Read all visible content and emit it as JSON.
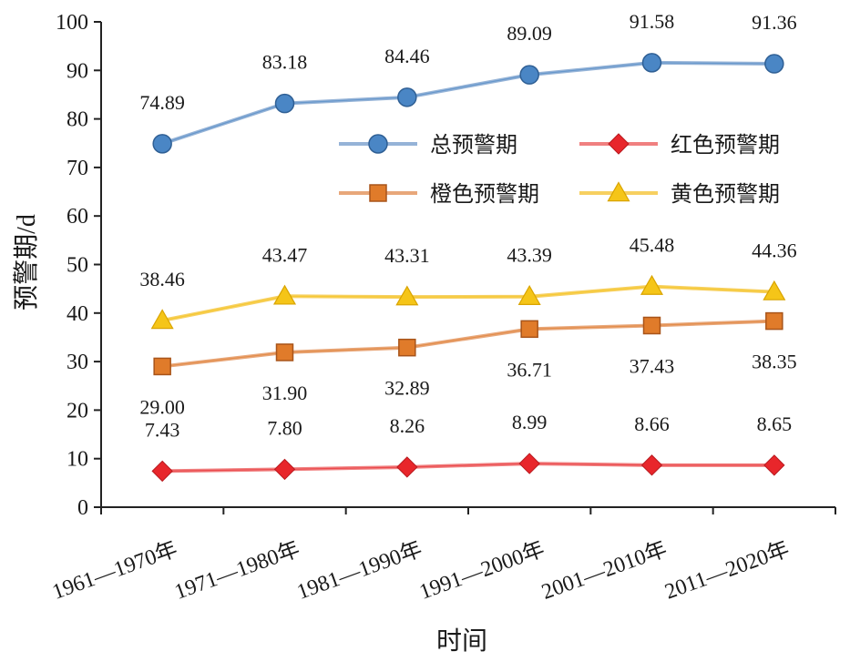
{
  "chart_data": {
    "type": "line",
    "title": "",
    "xlabel": "时间",
    "ylabel": "预警期/d",
    "ylim": [
      0,
      100
    ],
    "yticks": [
      0,
      10,
      20,
      30,
      40,
      50,
      60,
      70,
      80,
      90,
      100
    ],
    "grid": false,
    "legend_position": "top-right",
    "categories": [
      "1961—1970年",
      "1971—1980年",
      "1981—1990年",
      "1991—2000年",
      "2001—2010年",
      "2011—2020年"
    ],
    "series": [
      {
        "name": "总预警期",
        "values": [
          74.89,
          83.18,
          84.46,
          89.09,
          91.58,
          91.36
        ],
        "labels": [
          "74.89",
          "83.18",
          "84.46",
          "89.09",
          "91.58",
          "91.36"
        ],
        "color": "#4a86c5",
        "line_color": "#95b3d7",
        "marker": "circle",
        "label_position": "above"
      },
      {
        "name": "红色预警期",
        "values": [
          7.43,
          7.8,
          8.26,
          8.99,
          8.66,
          8.65
        ],
        "labels": [
          "7.43",
          "7.80",
          "8.26",
          "8.99",
          "8.66",
          "8.65"
        ],
        "color": "#e8262b",
        "line_color": "#f08080",
        "marker": "diamond",
        "label_position": "above"
      },
      {
        "name": "橙色预警期",
        "values": [
          29.0,
          31.9,
          32.89,
          36.71,
          37.43,
          38.35
        ],
        "labels": [
          "29.00",
          "31.90",
          "32.89",
          "36.71",
          "37.43",
          "38.35"
        ],
        "color": "#e07b2a",
        "line_color": "#e8a77a",
        "marker": "square",
        "label_position": "below"
      },
      {
        "name": "黄色预警期",
        "values": [
          38.46,
          43.47,
          43.31,
          43.39,
          45.48,
          44.36
        ],
        "labels": [
          "38.46",
          "43.47",
          "43.31",
          "43.39",
          "45.48",
          "44.36"
        ],
        "color": "#f5c518",
        "line_color": "#f7d060",
        "marker": "triangle",
        "label_position": "above"
      }
    ]
  }
}
